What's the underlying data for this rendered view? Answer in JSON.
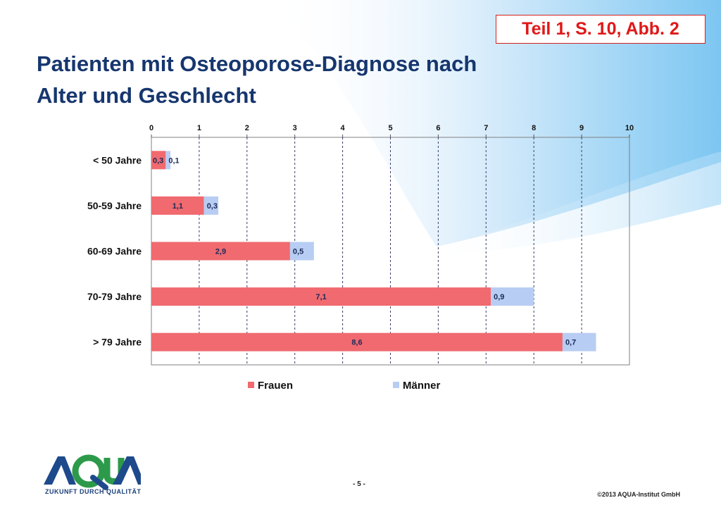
{
  "tag": "Teil 1, S. 10, Abb. 2",
  "title_lines": [
    "Patienten mit Osteoporose-Diagnose nach",
    "Alter und Geschlecht"
  ],
  "chart_data": {
    "type": "bar",
    "orientation": "horizontal",
    "stacked": true,
    "categories": [
      "< 50 Jahre",
      "50-59 Jahre",
      "60-69  Jahre",
      "70-79 Jahre",
      "> 79 Jahre"
    ],
    "series": [
      {
        "name": "Frauen",
        "values": [
          0.3,
          1.1,
          2.9,
          7.1,
          8.6
        ],
        "labels": [
          "0,3",
          "1,1",
          "2,9",
          "7,1",
          "8,6"
        ],
        "color": "#f06a6f"
      },
      {
        "name": "Männer",
        "values": [
          0.1,
          0.3,
          0.5,
          0.9,
          0.7
        ],
        "labels": [
          "0,1",
          "0,3",
          "0,5",
          "0,9",
          "0,7"
        ],
        "color": "#b8cdf3"
      }
    ],
    "xlim": [
      0,
      10
    ],
    "xticks": [
      0,
      1,
      2,
      3,
      4,
      5,
      6,
      7,
      8,
      9,
      10
    ],
    "x_axis_position": "top",
    "grid": "vertical dashed",
    "legend_position": "bottom"
  },
  "footer": {
    "logo_text": "AQUA",
    "logo_subtitle": "ZUKUNFT DURCH QUALITÄT",
    "page_number": "- 5 -",
    "copyright": "©2013 AQUA-Institut GmbH"
  }
}
